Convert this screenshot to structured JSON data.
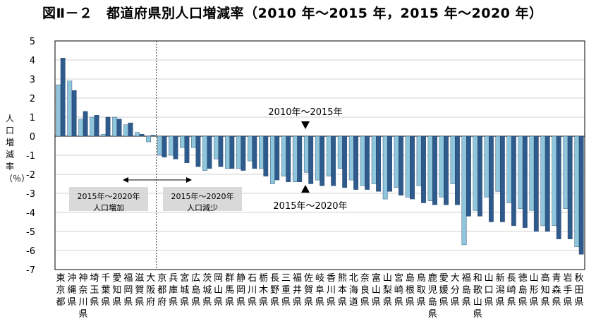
{
  "title": "図Ⅱ－２　都道府県別人口増減率（2010 年～2015 年，2015 年～2020 年）",
  "chart_data": {
    "type": "bar",
    "title": "図Ⅱ－２　都道府県別人口増減率（2010 年～2015 年，2015 年～2020 年）",
    "ylabel": "人口増減率（％）",
    "ylim": [
      -7,
      5
    ],
    "yticks": [
      5,
      4,
      3,
      2,
      1,
      0,
      -1,
      -2,
      -3,
      -4,
      -5,
      -6,
      -7
    ],
    "grid": true,
    "categories": [
      "東京都",
      "沖縄県",
      "神奈川県",
      "埼玉県",
      "千葉県",
      "愛知県",
      "福岡県",
      "滋賀県",
      "大阪府",
      "京都府",
      "兵庫県",
      "宮城県",
      "広島県",
      "茨城県",
      "岡山県",
      "群馬県",
      "静岡県",
      "石川県",
      "栃木県",
      "長野県",
      "三重県",
      "福井県",
      "佐賀県",
      "岐阜県",
      "香川県",
      "熊本県",
      "北海道",
      "奈良県",
      "富山県",
      "山梨県",
      "宮崎県",
      "島根県",
      "鳥取県",
      "鹿児島県",
      "愛媛県",
      "大分県",
      "福島県",
      "和歌山県",
      "山口県",
      "新潟県",
      "長崎県",
      "徳島県",
      "山形県",
      "高知県",
      "青森県",
      "岩手県",
      "秋田県"
    ],
    "category_labels": [
      "東京都",
      "沖縄県",
      "神奈川県",
      "埼玉県",
      "千葉県",
      "愛知県",
      "福岡県",
      "滋賀県",
      "大阪府",
      "京都府",
      "兵庫県",
      "宮城県",
      "広島県",
      "茨城県",
      "岡山県",
      "群馬県",
      "静岡県",
      "石川県",
      "栃木県",
      "長野県",
      "三重県",
      "福井県",
      "佐賀県",
      "岐阜県",
      "香川県",
      "熊本県",
      "北海道",
      "奈良県",
      "富山県",
      "山梨県",
      "宮崎県",
      "島根県",
      "鳥取県",
      "鹿児島県",
      "愛媛県",
      "大分県",
      "福島県",
      "和歌山県",
      "山口県",
      "新潟県",
      "長崎県",
      "徳島県",
      "山形県",
      "高知県",
      "青森県",
      "岩手県",
      "秋田県"
    ],
    "series": [
      {
        "name": "2010年～2015年",
        "color": "#8fc6dc",
        "values": [
          2.7,
          2.9,
          0.9,
          1.0,
          0.1,
          1.0,
          0.6,
          0.2,
          -0.3,
          -1.0,
          -1.0,
          -0.6,
          -0.6,
          -1.8,
          -1.2,
          -1.7,
          -1.7,
          -1.3,
          -1.7,
          -2.5,
          -2.1,
          -2.4,
          -1.9,
          -2.3,
          -2.1,
          -1.7,
          -2.3,
          -2.6,
          -2.5,
          -3.3,
          -2.7,
          -3.2,
          -2.6,
          -3.4,
          -3.2,
          -2.5,
          -5.7,
          -3.9,
          -3.2,
          -2.9,
          -3.5,
          -3.8,
          -3.9,
          -4.7,
          -4.7,
          -3.8,
          -5.8
        ]
      },
      {
        "name": "2015年～2020年",
        "color": "#2f5a8c",
        "values": [
          4.1,
          2.4,
          1.3,
          1.1,
          1.0,
          0.9,
          0.7,
          0.1,
          0.05,
          -1.1,
          -1.2,
          -1.4,
          -1.6,
          -1.7,
          -1.6,
          -1.7,
          -1.8,
          -1.7,
          -2.1,
          -2.3,
          -2.4,
          -2.4,
          -2.5,
          -2.6,
          -2.6,
          -2.7,
          -2.8,
          -2.8,
          -2.9,
          -2.9,
          -3.1,
          -3.3,
          -3.5,
          -3.6,
          -3.6,
          -3.6,
          -4.2,
          -4.2,
          -4.5,
          -4.5,
          -4.7,
          -4.8,
          -5.0,
          -5.0,
          -5.4,
          -5.4,
          -6.2
        ]
      }
    ],
    "annotations": {
      "upper_label": "2010年～2015年",
      "lower_label": "2015年～2020年",
      "increase_box": "2015年～2020年 人口増加",
      "decrease_box": "2015年～2020年 人口減少"
    },
    "colors": {
      "series1": "#8fc6dc",
      "series2": "#2f5a8c",
      "gridline": "#d0d0d0",
      "box": "#d9d9d9"
    }
  }
}
